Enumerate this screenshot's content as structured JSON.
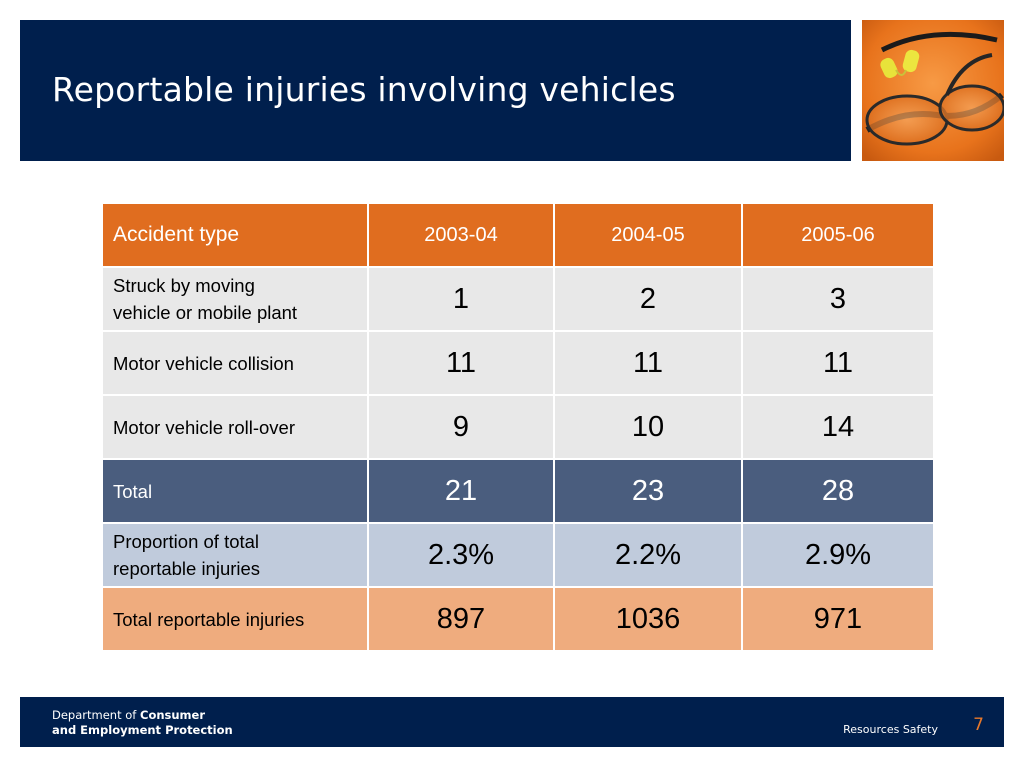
{
  "slide": {
    "title": "Reportable injuries involving vehicles",
    "page_number": "7"
  },
  "table": {
    "headers": [
      "Accident type",
      "2003-04",
      "2004-05",
      "2005-06"
    ],
    "rows": [
      {
        "label_line1": "Struck by moving",
        "label_line2": "vehicle or mobile plant",
        "values": [
          "1",
          "2",
          "3"
        ]
      },
      {
        "label_line1": "Motor vehicle collision",
        "values": [
          "11",
          "11",
          "11"
        ]
      },
      {
        "label_line1": "Motor vehicle roll-over",
        "values": [
          "9",
          "10",
          "14"
        ]
      },
      {
        "label_line1": "Total",
        "values": [
          "21",
          "23",
          "28"
        ]
      },
      {
        "label_line1": "Proportion of total",
        "label_line2": "reportable injuries",
        "values": [
          "2.3%",
          "2.2%",
          "2.9%"
        ]
      },
      {
        "label_line1": "Total reportable injuries",
        "values": [
          "897",
          "1036",
          "971"
        ]
      }
    ]
  },
  "footer": {
    "dept_prefix": "Department of ",
    "dept_bold1": "Consumer",
    "dept_bold2": "and Employment Protection",
    "brand": "Resources Safety"
  },
  "colors": {
    "navy": "#001f4d",
    "orange_header": "#e06d1f",
    "total_row": "#4a5d7e",
    "proportion_row": "#c0cbdc",
    "reportable_row": "#efac7e",
    "plain_row": "#e8e8e8"
  }
}
